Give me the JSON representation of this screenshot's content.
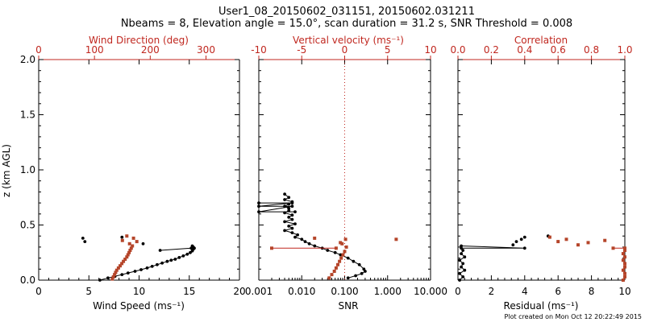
{
  "header": {
    "title_line1": "User1_08_20150602_031151, 20150602.031211",
    "title_line2": "Nbeams = 8, Elevation angle = 15.0°, scan duration = 31.2 s, SNR Threshold = 0.008"
  },
  "footer": {
    "created": "Plot created on Mon Oct 12 20:22:49 2015"
  },
  "colors": {
    "black_series": "#000000",
    "red_series": "#b5452a",
    "top_axis": "#c0271f",
    "ref_line": "#c0271f"
  },
  "chart_data": [
    {
      "type": "scatter",
      "panel": "wind",
      "ylabel": "z (km AGL)",
      "ylim": [
        0,
        2.0
      ],
      "yticks": [
        "0.0",
        "0.5",
        "1.0",
        "1.5",
        "2.0"
      ],
      "xlabel_bottom": "Wind Speed (ms⁻¹)",
      "xlim_bottom": [
        0,
        20
      ],
      "xticks_bottom": [
        "0",
        "5",
        "10",
        "15",
        "20"
      ],
      "xlabel_top": "Wind Direction (deg)",
      "xlim_top": [
        0,
        360
      ],
      "xticks_top": [
        "0",
        "100",
        "200",
        "300"
      ],
      "series": [
        {
          "axis": "bottom",
          "connected": true,
          "x": [
            6.1,
            6.9,
            7.6,
            8.3,
            8.9,
            9.6,
            10.2,
            10.8,
            11.3,
            11.8,
            12.3,
            12.8,
            13.2,
            13.6,
            14.0,
            14.4,
            14.8,
            15.1,
            15.3,
            15.4,
            15.5,
            15.4,
            15.3
          ],
          "y": [
            0.0,
            0.02,
            0.035,
            0.05,
            0.065,
            0.08,
            0.095,
            0.11,
            0.125,
            0.14,
            0.155,
            0.17,
            0.18,
            0.19,
            0.205,
            0.22,
            0.235,
            0.25,
            0.265,
            0.28,
            0.29,
            0.3,
            0.31
          ]
        },
        {
          "axis": "bottom",
          "connected": true,
          "x": [
            12.1,
            15.2
          ],
          "y": [
            0.27,
            0.29
          ]
        },
        {
          "axis": "bottom",
          "connected": false,
          "x": [
            4.4,
            4.6,
            8.3,
            10.4
          ],
          "y": [
            0.38,
            0.35,
            0.39,
            0.33
          ]
        },
        {
          "axis": "top",
          "connected": false,
          "x": [
            132,
            134,
            136,
            138,
            140,
            143,
            146,
            149,
            152,
            155,
            158,
            160,
            162,
            164,
            166,
            168,
            150,
            158,
            170,
            176,
            163
          ],
          "y": [
            0.01,
            0.03,
            0.05,
            0.07,
            0.09,
            0.11,
            0.13,
            0.15,
            0.17,
            0.19,
            0.21,
            0.23,
            0.25,
            0.27,
            0.29,
            0.31,
            0.36,
            0.4,
            0.38,
            0.35,
            0.33
          ]
        }
      ]
    },
    {
      "type": "scatter",
      "panel": "snr",
      "xlabel_bottom": "SNR",
      "xscale": "log",
      "xlim_bottom": [
        0.001,
        10
      ],
      "xticks_bottom": [
        "0.001",
        "0.010",
        "0.100",
        "1.000",
        "10.000"
      ],
      "xlabel_top": "Vertical velocity (ms⁻¹)",
      "xlim_top": [
        -10,
        10
      ],
      "xticks_top": [
        "-10",
        "-5",
        "0",
        "5",
        "10"
      ],
      "ylim": [
        0,
        2.0
      ],
      "reference_line_top_x": 0,
      "series": [
        {
          "axis": "bottom",
          "connected": true,
          "x": [
            0.004,
            0.005,
            0.004,
            0.006,
            0.005,
            0.004,
            0.005,
            0.005,
            0.004,
            0.006,
            0.005,
            0.006,
            0.004,
            0.007,
            0.005,
            0.006,
            0.004,
            0.006,
            0.008,
            0.007,
            0.01,
            0.012,
            0.015,
            0.02,
            0.03,
            0.04,
            0.06,
            0.08,
            0.12,
            0.16,
            0.22,
            0.28,
            0.3,
            0.25,
            0.18,
            0.12
          ],
          "y": [
            0.78,
            0.75,
            0.73,
            0.71,
            0.69,
            0.67,
            0.65,
            0.63,
            0.61,
            0.59,
            0.57,
            0.55,
            0.53,
            0.51,
            0.49,
            0.47,
            0.45,
            0.43,
            0.41,
            0.39,
            0.37,
            0.35,
            0.33,
            0.31,
            0.29,
            0.27,
            0.25,
            0.23,
            0.2,
            0.17,
            0.14,
            0.1,
            0.08,
            0.06,
            0.04,
            0.02
          ]
        },
        {
          "axis": "bottom",
          "connected": true,
          "x": [
            0.001,
            0.006,
            0.001,
            0.006,
            0.001,
            0.007
          ],
          "y": [
            0.7,
            0.7,
            0.67,
            0.67,
            0.62,
            0.62
          ]
        },
        {
          "axis": "top",
          "connected": false,
          "x": [
            -1.8,
            -1.5,
            -1.2,
            -1.0,
            -0.8,
            -0.6,
            -0.4,
            -0.2,
            0.0,
            0.2,
            -0.5,
            0.1,
            -0.3,
            6.0,
            -3.5
          ],
          "y": [
            0.02,
            0.05,
            0.08,
            0.11,
            0.14,
            0.17,
            0.2,
            0.23,
            0.26,
            0.3,
            0.34,
            0.37,
            0.33,
            0.37,
            0.38
          ]
        },
        {
          "axis": "top",
          "connected": true,
          "x": [
            -8.5,
            -1.0
          ],
          "y": [
            0.29,
            0.29
          ]
        }
      ]
    },
    {
      "type": "scatter",
      "panel": "residual",
      "xlabel_bottom": "Residual (ms⁻¹)",
      "xlim_bottom": [
        0,
        10
      ],
      "xticks_bottom": [
        "0",
        "2",
        "4",
        "6",
        "8",
        "10"
      ],
      "xlabel_top": "Correlation",
      "xlim_top": [
        0,
        1.0
      ],
      "xticks_top": [
        "0.0",
        "0.2",
        "0.4",
        "0.6",
        "0.8",
        "1.0"
      ],
      "ylim": [
        0,
        2.0
      ],
      "series": [
        {
          "axis": "bottom",
          "connected": true,
          "x": [
            0.1,
            0.3,
            0.1,
            0.4,
            0.2,
            0.3,
            0.1,
            0.4,
            0.2,
            0.3,
            0.2,
            4.0,
            0.2
          ],
          "y": [
            0.0,
            0.03,
            0.06,
            0.09,
            0.12,
            0.15,
            0.18,
            0.21,
            0.24,
            0.27,
            0.29,
            0.29,
            0.31
          ]
        },
        {
          "axis": "bottom",
          "connected": false,
          "x": [
            3.3,
            3.5,
            3.8,
            4.0,
            5.4
          ],
          "y": [
            0.32,
            0.35,
            0.37,
            0.39,
            0.4
          ]
        },
        {
          "axis": "top",
          "connected": false,
          "x": [
            0.55,
            0.6,
            0.65,
            0.72,
            0.78,
            0.88
          ],
          "y": [
            0.39,
            0.35,
            0.37,
            0.32,
            0.34,
            0.36
          ]
        },
        {
          "axis": "top",
          "connected": true,
          "x": [
            0.99,
            1.0,
            1.0,
            0.99,
            1.0,
            1.0,
            0.99,
            1.0,
            0.99,
            1.0,
            1.0,
            0.93
          ],
          "y": [
            0.0,
            0.03,
            0.06,
            0.09,
            0.12,
            0.15,
            0.18,
            0.21,
            0.24,
            0.27,
            0.29,
            0.29
          ]
        }
      ]
    }
  ]
}
